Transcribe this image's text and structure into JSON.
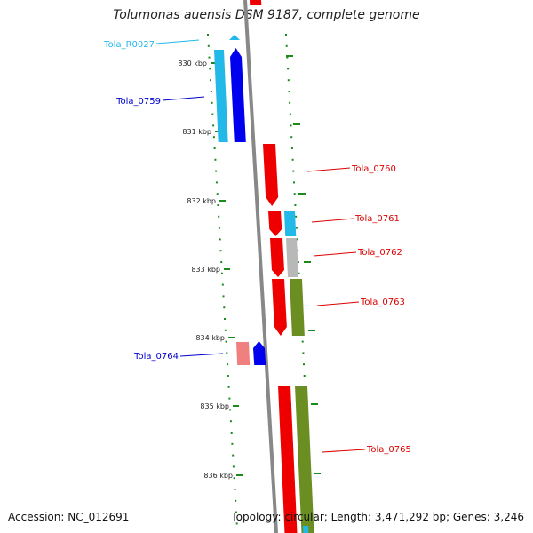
{
  "title": "Tolumonas auensis DSM 9187, complete genome",
  "footer": {
    "accession": "Accession: NC_012691",
    "summary": "Topology: circular; Length: 3,471,292 bp; Genes: 3,246"
  },
  "ticks": [
    "830 kbp",
    "831 kbp",
    "832 kbp",
    "833 kbp",
    "834 kbp",
    "835 kbp",
    "836 kbp"
  ],
  "colors": {
    "forward": "#0000ee",
    "reverse": "#ee0000",
    "rna": "#22b8e8",
    "cog_olive": "#6b8e23",
    "cog_grey": "#b8b8b8",
    "cog_pink": "#f08080",
    "backbone": "#888888",
    "tick": "#1a8a1a"
  },
  "genes": [
    {
      "name": "Tola_R0027",
      "color": "#22b8e8"
    },
    {
      "name": "Tola_0759",
      "color": "#0000cc"
    },
    {
      "name": "Tola_0760",
      "color": "#dd0000"
    },
    {
      "name": "Tola_0761",
      "color": "#dd0000"
    },
    {
      "name": "Tola_0762",
      "color": "#dd0000"
    },
    {
      "name": "Tola_0763",
      "color": "#dd0000"
    },
    {
      "name": "Tola_0764",
      "color": "#0000cc"
    },
    {
      "name": "Tola_0765",
      "color": "#dd0000"
    }
  ]
}
